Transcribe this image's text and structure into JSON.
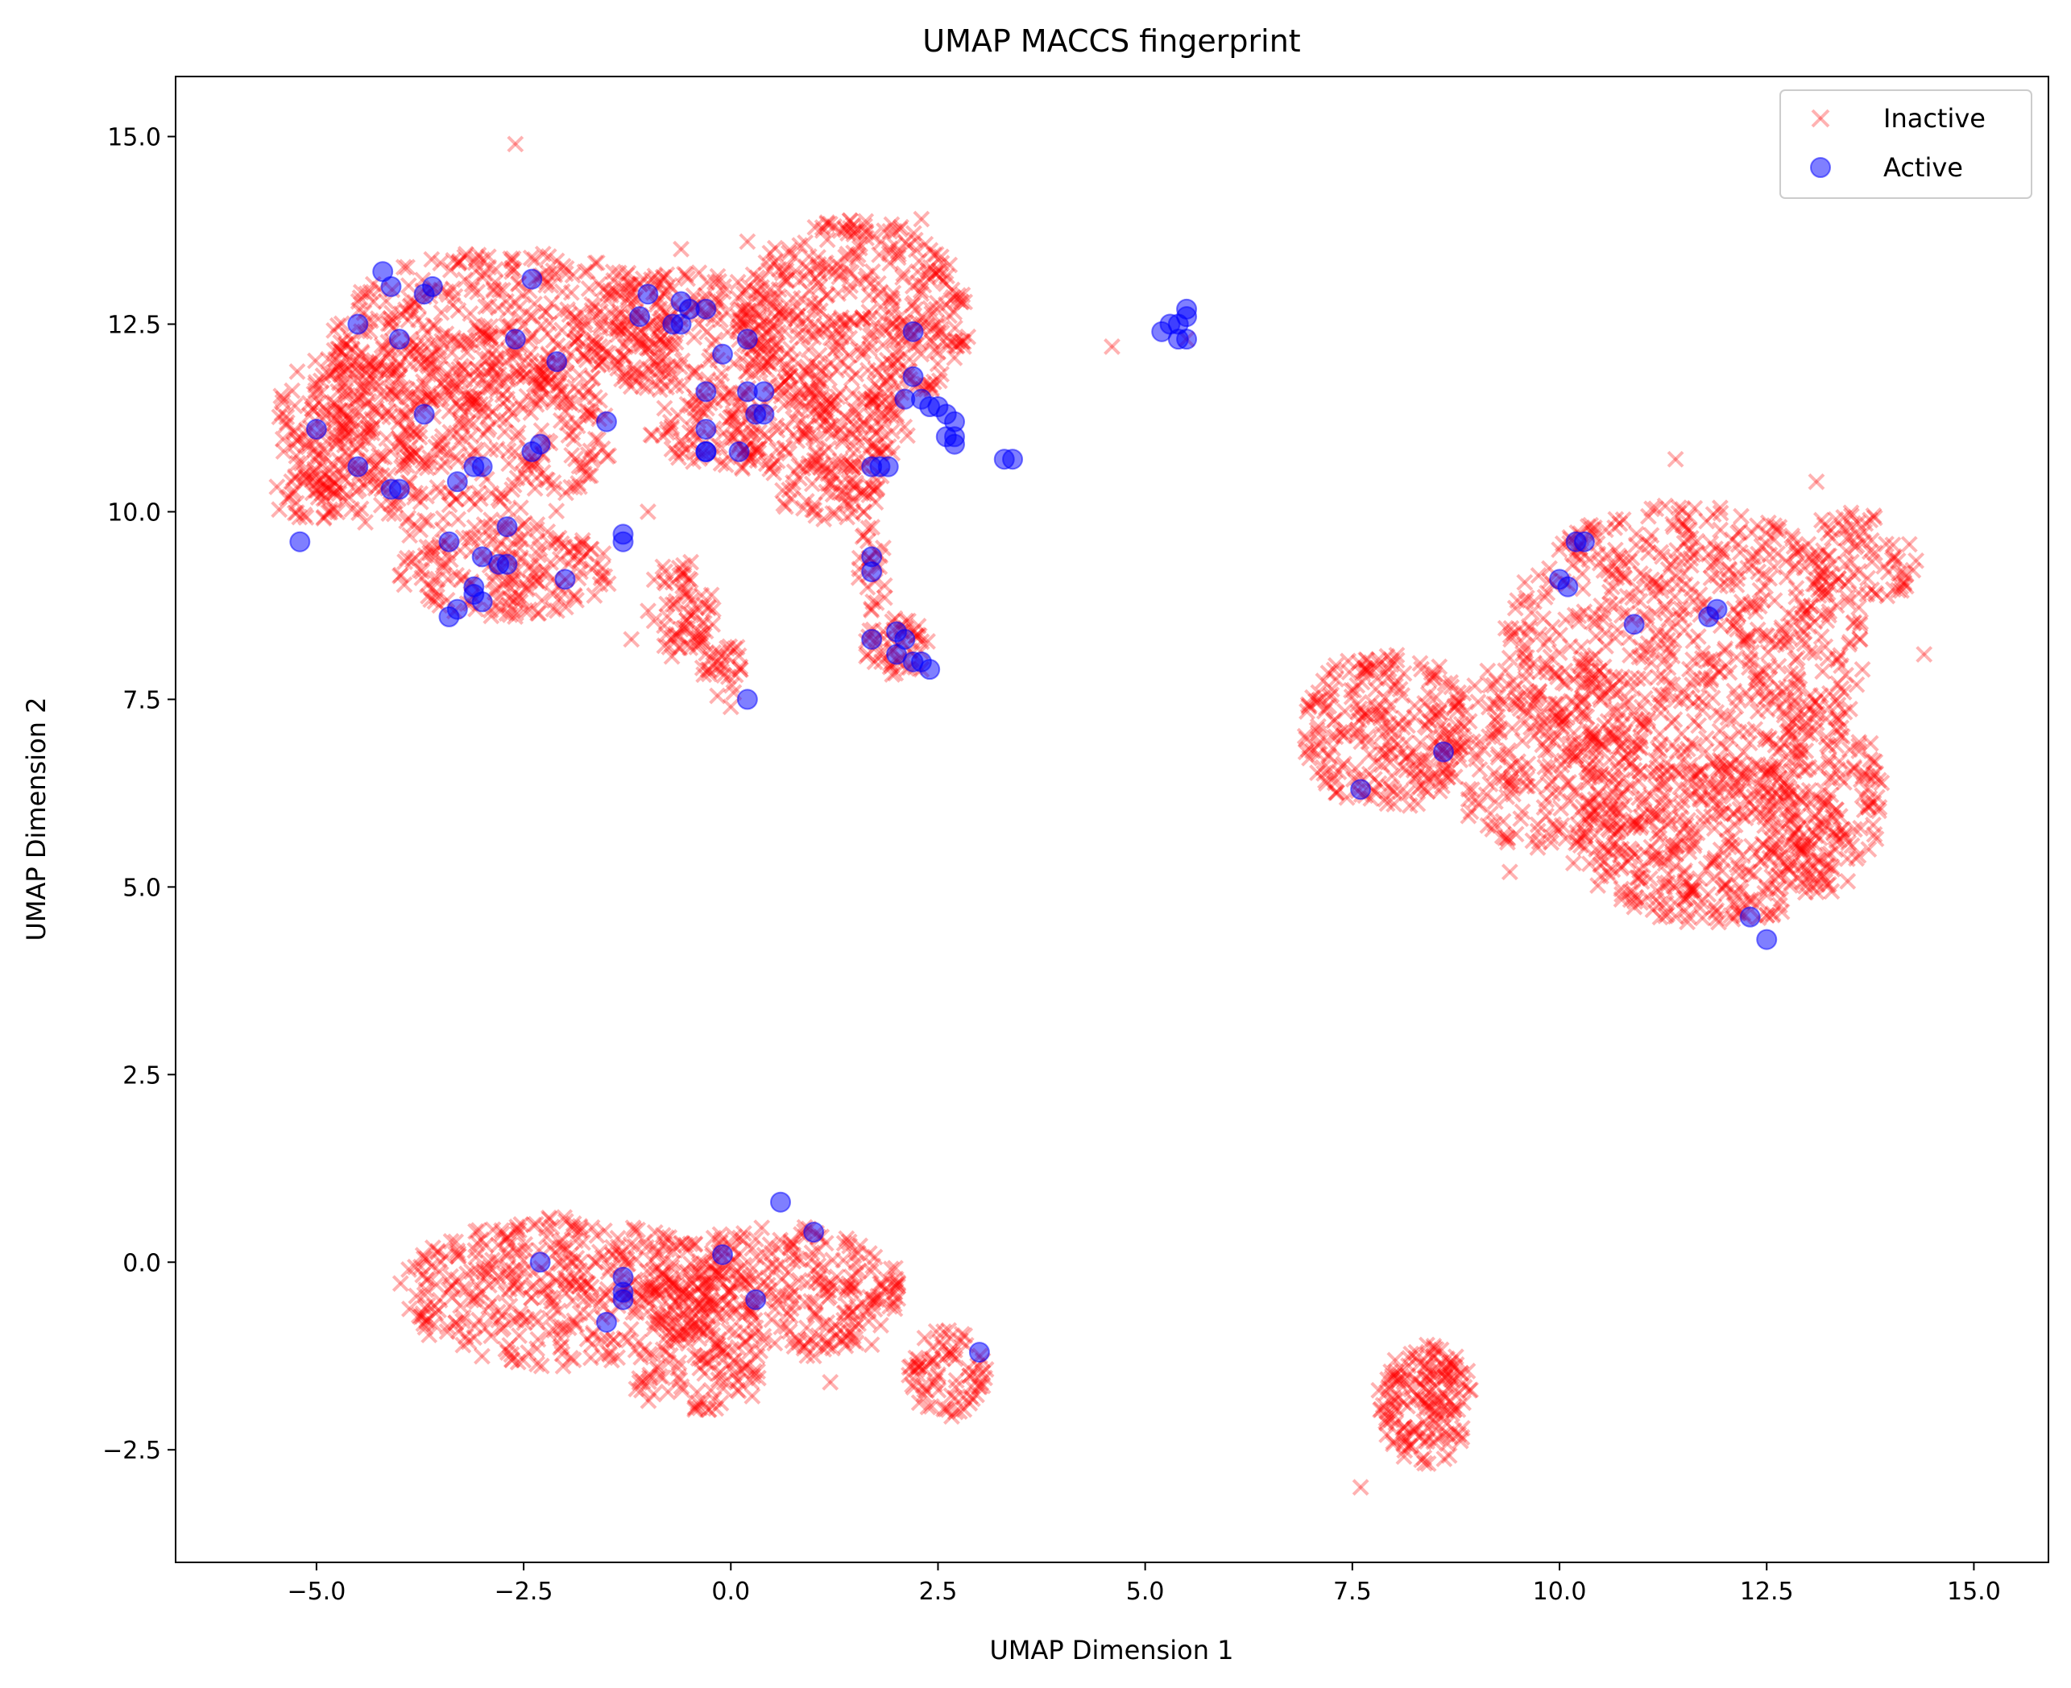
{
  "chart_data": {
    "type": "scatter",
    "title": "UMAP MACCS fingerprint",
    "xlabel": "UMAP Dimension 1",
    "ylabel": "UMAP Dimension 2",
    "xlim": [
      -6.7,
      15.9
    ],
    "ylim": [
      -4.0,
      15.8
    ],
    "xticks": [
      -5.0,
      -2.5,
      0.0,
      2.5,
      5.0,
      7.5,
      10.0,
      12.5,
      15.0
    ],
    "yticks": [
      -2.5,
      0.0,
      2.5,
      5.0,
      7.5,
      10.0,
      12.5,
      15.0
    ],
    "xtick_labels": [
      "−5.0",
      "−2.5",
      "0.0",
      "2.5",
      "5.0",
      "7.5",
      "10.0",
      "12.5",
      "15.0"
    ],
    "ytick_labels": [
      "−2.5",
      "0.0",
      "2.5",
      "5.0",
      "7.5",
      "10.0",
      "12.5",
      "15.0"
    ],
    "grid": false,
    "legend_position": "top-right",
    "series": [
      {
        "name": "Inactive",
        "marker": "x",
        "color": "#ff0000",
        "alpha": 0.3,
        "points": [
          [
            -2.6,
            14.9
          ],
          [
            4.6,
            12.2
          ],
          [
            -1.2,
            8.3
          ],
          [
            0.0,
            7.4
          ],
          [
            11.4,
            10.7
          ],
          [
            13.1,
            10.4
          ],
          [
            14.4,
            8.1
          ],
          [
            9.4,
            5.2
          ],
          [
            2.3,
            13.9
          ],
          [
            -1.0,
            10.0
          ],
          [
            -0.6,
            13.5
          ],
          [
            0.2,
            13.6
          ],
          [
            1.7,
            -1.1
          ],
          [
            1.2,
            -1.6
          ],
          [
            2.3,
            7.9
          ],
          [
            5.5,
            12.3
          ],
          [
            13.8,
            5.7
          ],
          [
            7.6,
            -3.0
          ]
        ],
        "clusters": [
          {
            "cx": -2.6,
            "cy": 12.4,
            "rx": 2.2,
            "ry": 1.1,
            "n": 420
          },
          {
            "cx": -3.4,
            "cy": 11.0,
            "rx": 2.0,
            "ry": 1.4,
            "n": 360
          },
          {
            "cx": -4.6,
            "cy": 11.2,
            "rx": 0.9,
            "ry": 1.0,
            "n": 160
          },
          {
            "cx": -5.1,
            "cy": 10.2,
            "rx": 0.4,
            "ry": 0.4,
            "n": 40
          },
          {
            "cx": -2.7,
            "cy": 9.2,
            "rx": 1.3,
            "ry": 0.6,
            "n": 170
          },
          {
            "cx": 1.5,
            "cy": 12.6,
            "rx": 1.4,
            "ry": 1.3,
            "n": 420
          },
          {
            "cx": -0.6,
            "cy": 12.4,
            "rx": 1.3,
            "ry": 0.8,
            "n": 180
          },
          {
            "cx": 0.6,
            "cy": 11.1,
            "rx": 1.6,
            "ry": 0.6,
            "n": 240
          },
          {
            "cx": 1.2,
            "cy": 10.3,
            "rx": 0.7,
            "ry": 0.4,
            "n": 70
          },
          {
            "cx": -0.6,
            "cy": 8.7,
            "rx": 0.4,
            "ry": 0.7,
            "n": 70
          },
          {
            "cx": -0.1,
            "cy": 7.9,
            "rx": 0.3,
            "ry": 0.4,
            "n": 30
          },
          {
            "cx": 2.0,
            "cy": 8.2,
            "rx": 0.4,
            "ry": 0.4,
            "n": 50
          },
          {
            "cx": 1.7,
            "cy": 9.2,
            "rx": 0.2,
            "ry": 0.6,
            "n": 25
          },
          {
            "cx": 7.9,
            "cy": 7.1,
            "rx": 1.0,
            "ry": 1.1,
            "n": 250
          },
          {
            "cx": 9.8,
            "cy": 6.8,
            "rx": 1.2,
            "ry": 1.3,
            "n": 250
          },
          {
            "cx": 11.5,
            "cy": 8.2,
            "rx": 2.2,
            "ry": 1.9,
            "n": 650
          },
          {
            "cx": 11.8,
            "cy": 5.6,
            "rx": 1.7,
            "ry": 1.1,
            "n": 420
          },
          {
            "cx": 13.6,
            "cy": 9.4,
            "rx": 0.8,
            "ry": 0.6,
            "n": 80
          },
          {
            "cx": 13.2,
            "cy": 6.2,
            "rx": 0.7,
            "ry": 1.3,
            "n": 150
          },
          {
            "cx": -2.0,
            "cy": -0.4,
            "rx": 2.0,
            "ry": 1.0,
            "n": 420
          },
          {
            "cx": 0.5,
            "cy": -0.4,
            "rx": 1.6,
            "ry": 0.9,
            "n": 340
          },
          {
            "cx": -0.4,
            "cy": -1.6,
            "rx": 0.8,
            "ry": 0.4,
            "n": 70
          },
          {
            "cx": 2.6,
            "cy": -1.5,
            "rx": 0.5,
            "ry": 0.6,
            "n": 80
          },
          {
            "cx": 8.4,
            "cy": -1.9,
            "rx": 0.6,
            "ry": 0.8,
            "n": 170
          }
        ]
      },
      {
        "name": "Active",
        "marker": "o",
        "color": "#0000ff",
        "alpha": 0.5,
        "points": [
          [
            -4.2,
            13.2
          ],
          [
            -4.1,
            13.0
          ],
          [
            -3.7,
            12.9
          ],
          [
            -3.6,
            13.0
          ],
          [
            -2.4,
            13.1
          ],
          [
            -4.5,
            12.5
          ],
          [
            -4.0,
            12.3
          ],
          [
            -2.6,
            12.3
          ],
          [
            -2.1,
            12.0
          ],
          [
            -5.0,
            11.1
          ],
          [
            -3.7,
            11.3
          ],
          [
            -4.5,
            10.6
          ],
          [
            -4.0,
            10.3
          ],
          [
            -4.1,
            10.3
          ],
          [
            -3.1,
            10.6
          ],
          [
            -3.0,
            10.6
          ],
          [
            -3.3,
            10.4
          ],
          [
            -2.3,
            10.9
          ],
          [
            -2.4,
            10.8
          ],
          [
            -5.2,
            9.6
          ],
          [
            -3.4,
            9.6
          ],
          [
            -2.7,
            9.8
          ],
          [
            -3.0,
            9.4
          ],
          [
            -2.8,
            9.3
          ],
          [
            -2.7,
            9.3
          ],
          [
            -2.0,
            9.1
          ],
          [
            -3.1,
            9.0
          ],
          [
            -3.1,
            8.9
          ],
          [
            -3.3,
            8.7
          ],
          [
            -3.4,
            8.6
          ],
          [
            -3.0,
            8.8
          ],
          [
            -1.5,
            11.2
          ],
          [
            -1.3,
            9.6
          ],
          [
            -1.3,
            9.7
          ],
          [
            -1.1,
            12.6
          ],
          [
            -1.0,
            12.9
          ],
          [
            -0.6,
            12.8
          ],
          [
            -0.5,
            12.7
          ],
          [
            -0.3,
            12.7
          ],
          [
            -0.7,
            12.5
          ],
          [
            -0.6,
            12.5
          ],
          [
            -0.1,
            12.1
          ],
          [
            0.2,
            12.3
          ],
          [
            -0.3,
            11.6
          ],
          [
            0.2,
            11.6
          ],
          [
            0.4,
            11.6
          ],
          [
            -0.3,
            11.1
          ],
          [
            0.3,
            11.3
          ],
          [
            0.4,
            11.3
          ],
          [
            -0.3,
            10.8
          ],
          [
            -0.3,
            10.8
          ],
          [
            0.1,
            10.8
          ],
          [
            2.2,
            12.4
          ],
          [
            2.2,
            11.8
          ],
          [
            2.3,
            11.5
          ],
          [
            2.4,
            11.4
          ],
          [
            2.5,
            11.4
          ],
          [
            2.6,
            11.3
          ],
          [
            2.7,
            11.2
          ],
          [
            2.6,
            11.0
          ],
          [
            2.7,
            11.0
          ],
          [
            2.7,
            10.9
          ],
          [
            2.1,
            11.5
          ],
          [
            1.7,
            10.6
          ],
          [
            1.8,
            10.6
          ],
          [
            1.9,
            10.6
          ],
          [
            1.7,
            9.4
          ],
          [
            1.7,
            9.2
          ],
          [
            1.7,
            8.3
          ],
          [
            2.0,
            8.4
          ],
          [
            2.1,
            8.3
          ],
          [
            2.0,
            8.1
          ],
          [
            2.2,
            8.0
          ],
          [
            2.3,
            8.0
          ],
          [
            2.4,
            7.9
          ],
          [
            0.2,
            7.5
          ],
          [
            3.3,
            10.7
          ],
          [
            3.4,
            10.7
          ],
          [
            5.2,
            12.4
          ],
          [
            5.3,
            12.5
          ],
          [
            5.4,
            12.5
          ],
          [
            5.4,
            12.3
          ],
          [
            5.5,
            12.6
          ],
          [
            5.5,
            12.7
          ],
          [
            5.5,
            12.3
          ],
          [
            10.0,
            9.1
          ],
          [
            10.1,
            9.0
          ],
          [
            10.2,
            9.6
          ],
          [
            10.3,
            9.6
          ],
          [
            10.9,
            8.5
          ],
          [
            11.8,
            8.6
          ],
          [
            11.9,
            8.7
          ],
          [
            7.6,
            6.3
          ],
          [
            8.6,
            6.8
          ],
          [
            12.3,
            4.6
          ],
          [
            12.5,
            4.3
          ],
          [
            -2.3,
            0.0
          ],
          [
            -1.3,
            -0.2
          ],
          [
            -1.3,
            -0.5
          ],
          [
            -1.3,
            -0.4
          ],
          [
            -1.5,
            -0.8
          ],
          [
            -0.1,
            0.1
          ],
          [
            0.3,
            -0.5
          ],
          [
            0.6,
            0.8
          ],
          [
            1.0,
            0.4
          ],
          [
            3.0,
            -1.2
          ]
        ]
      }
    ]
  }
}
